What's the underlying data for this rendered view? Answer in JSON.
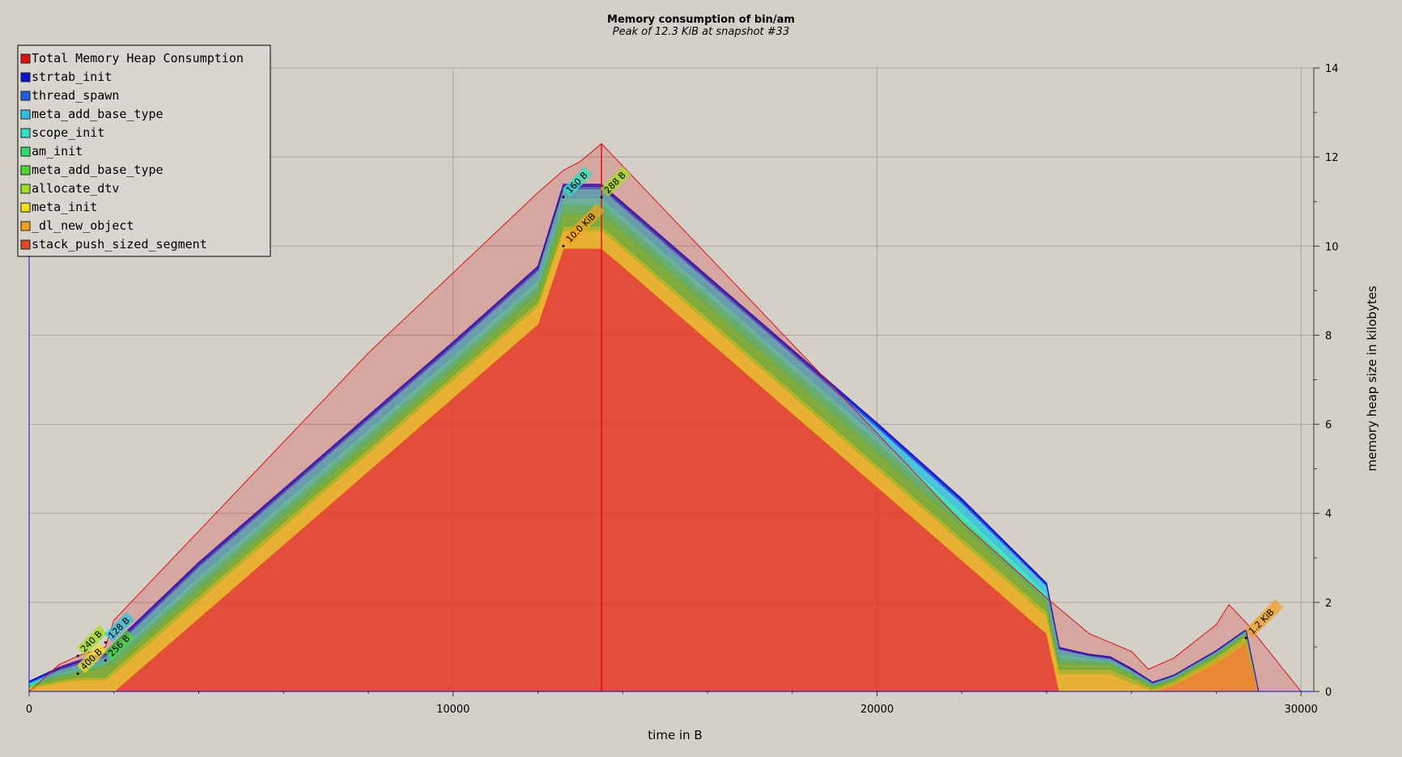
{
  "chart_data": {
    "type": "area",
    "title": "Memory consumption of bin/am",
    "subtitle": "Peak of 12.3 KiB at snapshot #33",
    "xlabel": "time in B",
    "ylabel": "memory heap size in kilobytes",
    "xlim": [
      0,
      30300
    ],
    "ylim": [
      0,
      14
    ],
    "x_ticks": [
      0,
      10000,
      20000,
      30000
    ],
    "x_tick_labels": [
      "0",
      "10000",
      "20000",
      "30000"
    ],
    "y_ticks": [
      0,
      2,
      4,
      6,
      8,
      10,
      12,
      14
    ],
    "y_tick_labels": [
      "0",
      "2",
      "4",
      "6",
      "8",
      "10",
      "12",
      "14"
    ],
    "grid": true,
    "legend_position": "top-left",
    "x": [
      0,
      700,
      1150,
      1800,
      2000,
      4000,
      6000,
      8000,
      10000,
      12000,
      12600,
      13000,
      13500,
      14000,
      16000,
      18000,
      20000,
      22000,
      24000,
      24300,
      25000,
      25500,
      26000,
      26500,
      27000,
      28000,
      28700,
      29000,
      30000
    ],
    "series": [
      {
        "name": "stack_push_sized_segment",
        "color": "#e8442a",
        "values": [
          0,
          0,
          0,
          0,
          0,
          1.65,
          3.3,
          4.95,
          6.6,
          8.25,
          9.95,
          9.95,
          9.95,
          9.55,
          7.9,
          6.25,
          4.6,
          2.95,
          1.3,
          0,
          0,
          0,
          0,
          0,
          0,
          0,
          0,
          0,
          0
        ]
      },
      {
        "name": "_dl_new_object",
        "color": "#f0a020",
        "values": [
          0,
          0,
          0,
          0,
          0,
          0,
          0,
          0,
          0,
          0,
          0,
          0,
          0,
          0,
          0,
          0,
          0,
          0,
          0,
          0,
          0,
          0,
          0,
          0,
          0.15,
          0.65,
          1.1,
          0,
          0
        ]
      },
      {
        "name": "meta_init",
        "color": "#f0e020",
        "values": [
          0.08,
          0.2,
          0.26,
          0.26,
          0.4,
          0.4,
          0.4,
          0.4,
          0.4,
          0.4,
          0.4,
          0.4,
          0.4,
          0.4,
          0.4,
          0.4,
          0.4,
          0.4,
          0.4,
          0.4,
          0.4,
          0.4,
          0.2,
          0.02,
          0.02,
          0.02,
          0.02,
          0,
          0
        ]
      },
      {
        "name": "allocate_dtv",
        "color": "#a0e020",
        "values": [
          0.02,
          0.05,
          0.06,
          0.06,
          0.1,
          0.1,
          0.1,
          0.1,
          0.1,
          0.1,
          0.1,
          0.1,
          0.1,
          0.1,
          0.1,
          0.1,
          0.1,
          0.1,
          0.1,
          0.1,
          0.1,
          0.1,
          0.1,
          0.05,
          0.06,
          0.1,
          0.12,
          0,
          0
        ]
      },
      {
        "name": "meta_add_base_type",
        "color": "#50d830",
        "values": [
          0.03,
          0.08,
          0.1,
          0.25,
          0.15,
          0.15,
          0.15,
          0.15,
          0.15,
          0.2,
          0.28,
          0.28,
          0.28,
          0.28,
          0.28,
          0.28,
          0.28,
          0.28,
          0.2,
          0.15,
          0.12,
          0.1,
          0.08,
          0.05,
          0.05,
          0.06,
          0.06,
          0,
          0
        ]
      },
      {
        "name": "am_init",
        "color": "#30d870",
        "values": [
          0.02,
          0.05,
          0.06,
          0.06,
          0.1,
          0.15,
          0.15,
          0.15,
          0.15,
          0.15,
          0.2,
          0.2,
          0.2,
          0.2,
          0.2,
          0.2,
          0.2,
          0.15,
          0.1,
          0.1,
          0.08,
          0.06,
          0.04,
          0.03,
          0.03,
          0.03,
          0.03,
          0,
          0
        ]
      },
      {
        "name": "scope_init",
        "color": "#30e0c0",
        "values": [
          0.02,
          0.04,
          0.05,
          0.05,
          0.08,
          0.15,
          0.15,
          0.15,
          0.15,
          0.15,
          0.16,
          0.16,
          0.16,
          0.15,
          0.15,
          0.15,
          0.15,
          0.15,
          0.12,
          0.1,
          0.05,
          0.04,
          0.03,
          0.02,
          0.02,
          0.02,
          0.02,
          0,
          0
        ]
      },
      {
        "name": "meta_add_base_type",
        "color": "#30c0e0",
        "values": [
          0.02,
          0.06,
          0.08,
          0.1,
          0.15,
          0.2,
          0.2,
          0.2,
          0.2,
          0.2,
          0.2,
          0.2,
          0.2,
          0.2,
          0.2,
          0.2,
          0.2,
          0.2,
          0.15,
          0.1,
          0.05,
          0.04,
          0.03,
          0.02,
          0.02,
          0.02,
          0.02,
          0,
          0
        ]
      },
      {
        "name": "thread_spawn",
        "color": "#2060e0",
        "values": [
          0.02,
          0.03,
          0.04,
          0.05,
          0.05,
          0.05,
          0.05,
          0.05,
          0.05,
          0.05,
          0.05,
          0.05,
          0.05,
          0.05,
          0.05,
          0.05,
          0.05,
          0.05,
          0.03,
          0.02,
          0.02,
          0.02,
          0.02,
          0.01,
          0.01,
          0.01,
          0.01,
          0,
          0
        ]
      },
      {
        "name": "strtab_init",
        "color": "#1010d0",
        "values": [
          0.02,
          0.03,
          0.04,
          0.04,
          0.05,
          0.05,
          0.05,
          0.05,
          0.05,
          0.05,
          0.05,
          0.05,
          0.05,
          0.05,
          0.05,
          0.05,
          0.05,
          0.05,
          0.03,
          0.02,
          0.02,
          0.02,
          0.02,
          0.01,
          0.01,
          0.01,
          0.01,
          0,
          0
        ]
      }
    ],
    "total": {
      "name": "Total Memory Heap Consumption",
      "color": "#e01010",
      "x": [
        0,
        700,
        1150,
        1800,
        2000,
        4000,
        6000,
        8000,
        10000,
        12000,
        12600,
        13000,
        13500,
        14000,
        16000,
        18000,
        20000,
        22000,
        24000,
        25000,
        26000,
        26400,
        27000,
        28000,
        28300,
        28700,
        30000
      ],
      "values": [
        0,
        0.6,
        0.8,
        1.0,
        1.6,
        3.6,
        5.6,
        7.6,
        9.4,
        11.2,
        11.7,
        11.9,
        12.3,
        11.8,
        9.8,
        7.8,
        5.8,
        3.8,
        2.1,
        1.3,
        0.9,
        0.5,
        0.75,
        1.5,
        1.95,
        1.55,
        0
      ]
    },
    "annotations": [
      {
        "text": "240 B",
        "x": 1150,
        "y": 0.8,
        "color": "#a0e020"
      },
      {
        "text": "400 B",
        "x": 1150,
        "y": 0.4,
        "color": "#f0e020"
      },
      {
        "text": "128 B",
        "x": 1800,
        "y": 1.1,
        "color": "#30c0e0"
      },
      {
        "text": "256 B",
        "x": 1800,
        "y": 0.7,
        "color": "#50d830"
      },
      {
        "text": "160 B",
        "x": 12600,
        "y": 11.1,
        "color": "#30e0c0"
      },
      {
        "text": "10.0 KiB",
        "x": 12600,
        "y": 10.0,
        "color": "#f0a020"
      },
      {
        "text": "288 B",
        "x": 13500,
        "y": 11.1,
        "color": "#a0e020"
      },
      {
        "text": "1.2 KiB",
        "x": 28700,
        "y": 1.2,
        "color": "#f0a020"
      }
    ]
  }
}
